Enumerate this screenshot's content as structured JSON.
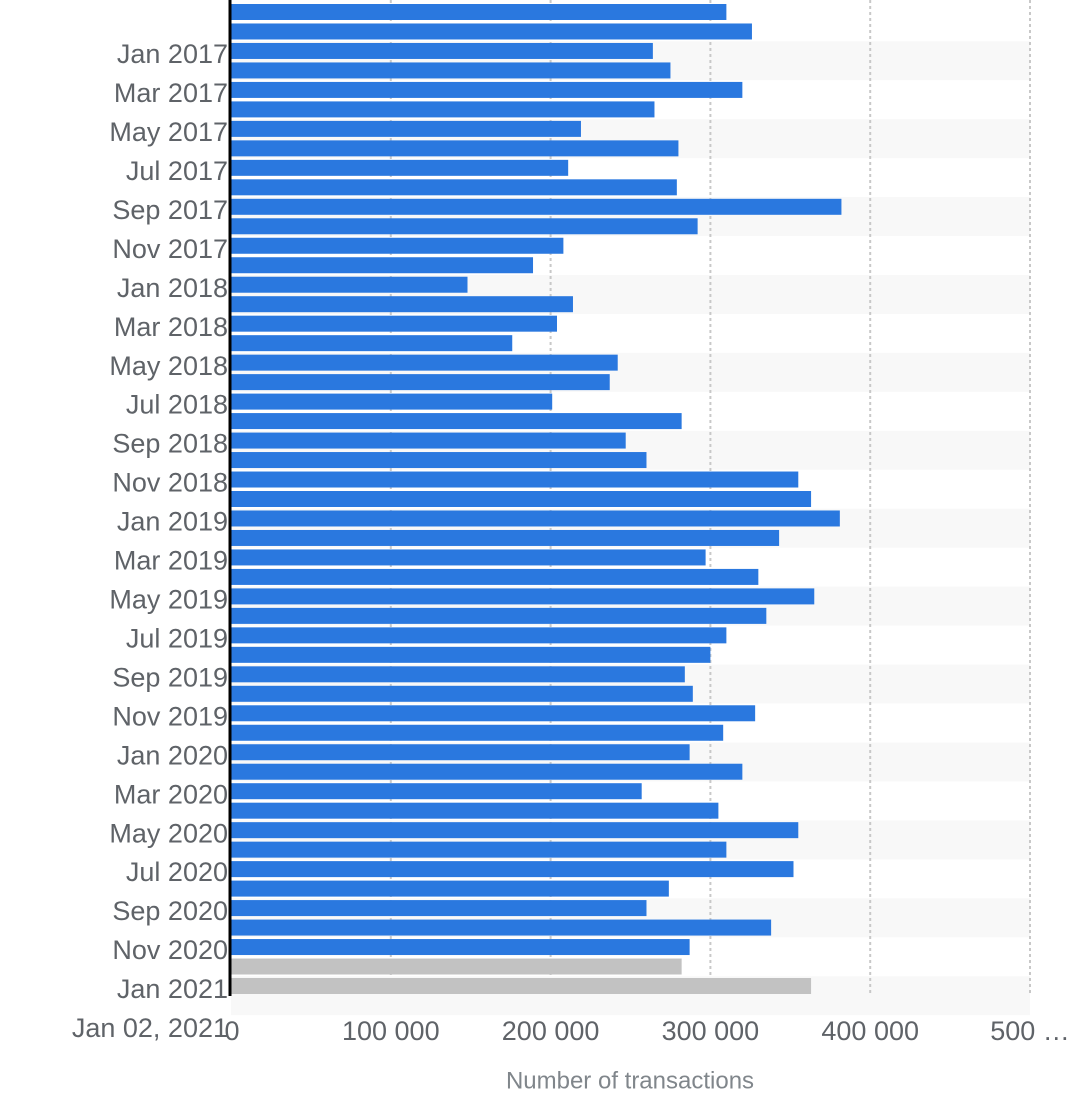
{
  "chart_data": {
    "type": "barh",
    "categories": [
      null,
      null,
      "Jan 2017",
      null,
      "Mar 2017",
      null,
      "May 2017",
      null,
      "Jul 2017",
      null,
      "Sep 2017",
      null,
      "Nov 2017",
      null,
      "Jan 2018",
      null,
      "Mar 2018",
      null,
      "May 2018",
      null,
      "Jul 2018",
      null,
      "Sep 2018",
      null,
      "Nov 2018",
      null,
      "Jan 2019",
      null,
      "Mar 2019",
      null,
      "May 2019",
      null,
      "Jul 2019",
      null,
      "Sep 2019",
      null,
      "Nov 2019",
      null,
      "Jan 2020",
      null,
      "Mar 2020",
      null,
      "May 2020",
      null,
      "Jul 2020",
      null,
      "Sep 2020",
      null,
      "Nov 2020",
      null,
      "Jan 2021"
    ],
    "values": [
      310000,
      326000,
      264000,
      275000,
      320000,
      265000,
      219000,
      280000,
      211000,
      279000,
      382000,
      292000,
      208000,
      189000,
      148000,
      214000,
      204000,
      176000,
      242000,
      237000,
      201000,
      282000,
      247000,
      260000,
      355000,
      363000,
      381000,
      343000,
      297000,
      330000,
      365000,
      335000,
      310000,
      300000,
      284000,
      289000,
      328000,
      308000,
      287000,
      320000,
      257000,
      305000,
      355000,
      310000,
      352000,
      274000,
      260000,
      338000,
      287000,
      282000,
      363000
    ],
    "colors": [
      "#2a78df",
      "#2a78df",
      "#2a78df",
      "#2a78df",
      "#2a78df",
      "#2a78df",
      "#2a78df",
      "#2a78df",
      "#2a78df",
      "#2a78df",
      "#2a78df",
      "#2a78df",
      "#2a78df",
      "#2a78df",
      "#2a78df",
      "#2a78df",
      "#2a78df",
      "#2a78df",
      "#2a78df",
      "#2a78df",
      "#2a78df",
      "#2a78df",
      "#2a78df",
      "#2a78df",
      "#2a78df",
      "#2a78df",
      "#2a78df",
      "#2a78df",
      "#2a78df",
      "#2a78df",
      "#2a78df",
      "#2a78df",
      "#2a78df",
      "#2a78df",
      "#2a78df",
      "#2a78df",
      "#2a78df",
      "#2a78df",
      "#2a78df",
      "#2a78df",
      "#2a78df",
      "#2a78df",
      "#2a78df",
      "#2a78df",
      "#2a78df",
      "#2a78df",
      "#2a78df",
      "#2a78df",
      "#2a78df",
      "#c2c2c2",
      "#c2c2c2"
    ],
    "date_label": "Jan 02, 2021",
    "xlabel": "Number of transactions",
    "xlim": [
      0,
      500000
    ],
    "xticks": [
      0,
      {
        "value": 100000,
        "label": "100 000"
      },
      {
        "value": 200000,
        "label": "200 000"
      },
      {
        "value": 300000,
        "label": "300 000"
      },
      {
        "value": 400000,
        "label": "400 000"
      },
      {
        "value": 500000,
        "label": "500 …"
      }
    ],
    "grid": true
  }
}
